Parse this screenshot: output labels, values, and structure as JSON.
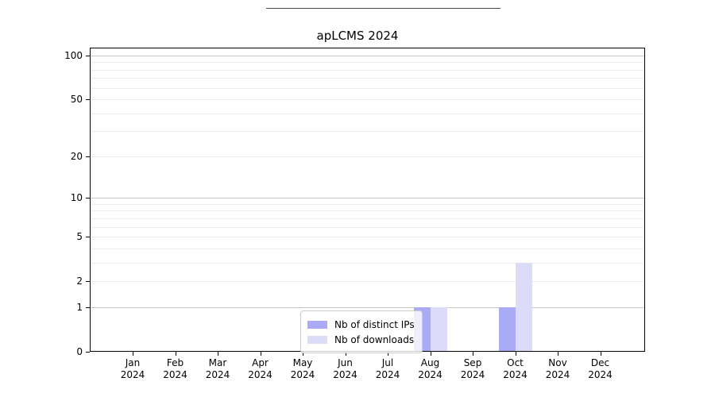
{
  "title": "apLCMS 2024",
  "legend": {
    "items": [
      {
        "label": "Nb of distinct IPs",
        "color": "#a9abf5"
      },
      {
        "label": "Nb of downloads",
        "color": "#dcdcf8"
      }
    ]
  },
  "chart_data": {
    "type": "bar",
    "title": "apLCMS 2024",
    "xlabel": "",
    "ylabel": "",
    "categories": [
      "Jan 2024",
      "Feb 2024",
      "Mar 2024",
      "Apr 2024",
      "May 2024",
      "Jun 2024",
      "Jul 2024",
      "Aug 2024",
      "Sep 2024",
      "Oct 2024",
      "Nov 2024",
      "Dec 2024"
    ],
    "series": [
      {
        "name": "Nb of distinct IPs",
        "color": "#a9abf5",
        "values": [
          0,
          0,
          0,
          0,
          0,
          0,
          0,
          1,
          0,
          1,
          0,
          0
        ]
      },
      {
        "name": "Nb of downloads",
        "color": "#dcdcf8",
        "values": [
          0,
          0,
          0,
          0,
          0,
          0,
          0,
          1,
          0,
          3,
          0,
          0
        ]
      }
    ],
    "yscale": "log1p",
    "ylim": [
      0,
      113
    ],
    "yticks": [
      0,
      1,
      2,
      5,
      10,
      20,
      50,
      100
    ],
    "major_gridlines": [
      1,
      10,
      100
    ],
    "minor_gridlines": [
      2,
      3,
      4,
      5,
      6,
      7,
      8,
      9,
      20,
      30,
      40,
      50,
      60,
      70,
      80,
      90
    ],
    "grid": true,
    "legend_position": "lower center"
  },
  "colors": {
    "background": "#ffffff",
    "frame": "#000000",
    "major_grid": "#c6c6c6",
    "minor_grid": "#ececec",
    "bar_ips": "#a9abf5",
    "bar_downloads": "#dcdcf8",
    "legend_border": "#cccccc"
  }
}
